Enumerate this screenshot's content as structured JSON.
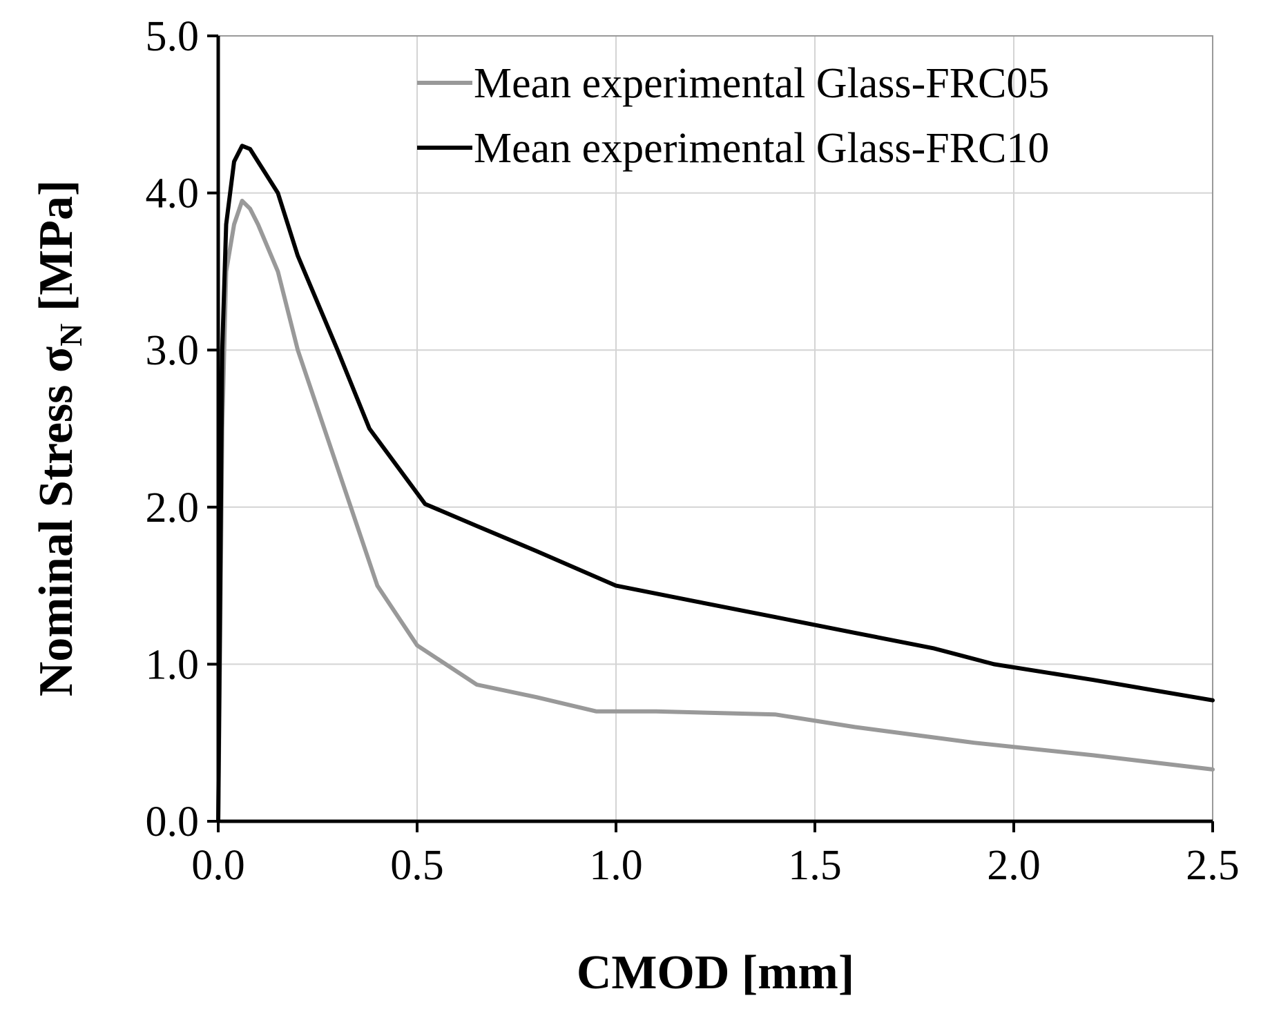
{
  "chart_data": {
    "type": "line",
    "title": "",
    "xlabel": "CMOD [mm]",
    "ylabel_main": "Nominal Stress σ",
    "ylabel_sub": "N",
    "ylabel_unit": " [MPa]",
    "xlim": [
      0,
      2.5
    ],
    "ylim": [
      0,
      5
    ],
    "xticks": [
      0,
      0.5,
      1.0,
      1.5,
      2.0,
      2.5
    ],
    "xtick_labels": [
      "0.0",
      "0.5",
      "1.0",
      "1.5",
      "2.0",
      "2.5"
    ],
    "yticks": [
      0,
      1,
      2,
      3,
      4,
      5
    ],
    "ytick_labels": [
      "0.0",
      "1.0",
      "2.0",
      "3.0",
      "4.0",
      "5.0"
    ],
    "grid": true,
    "legend_position": "top-right",
    "series": [
      {
        "name": "Mean experimental Glass-FRC05",
        "color": "#999999",
        "x": [
          0,
          0.005,
          0.01,
          0.02,
          0.04,
          0.06,
          0.08,
          0.1,
          0.15,
          0.2,
          0.3,
          0.4,
          0.5,
          0.65,
          0.8,
          0.95,
          1.1,
          1.25,
          1.4,
          1.6,
          1.9,
          2.2,
          2.5
        ],
        "y": [
          0,
          1.2,
          2.5,
          3.5,
          3.8,
          3.95,
          3.9,
          3.8,
          3.5,
          3.0,
          2.25,
          1.5,
          1.12,
          0.87,
          0.79,
          0.7,
          0.7,
          0.69,
          0.68,
          0.6,
          0.5,
          0.42,
          0.33
        ]
      },
      {
        "name": "Mean experimental Glass-FRC10",
        "color": "#000000",
        "x": [
          0,
          0.005,
          0.01,
          0.02,
          0.04,
          0.06,
          0.08,
          0.1,
          0.15,
          0.2,
          0.3,
          0.38,
          0.52,
          0.65,
          0.8,
          1.0,
          1.2,
          1.4,
          1.6,
          1.8,
          1.95,
          2.2,
          2.5
        ],
        "y": [
          0,
          1.5,
          3.0,
          3.8,
          4.2,
          4.3,
          4.28,
          4.2,
          4.0,
          3.6,
          3.0,
          2.5,
          2.02,
          1.88,
          1.72,
          1.5,
          1.4,
          1.3,
          1.2,
          1.1,
          1.0,
          0.9,
          0.77
        ]
      }
    ]
  }
}
